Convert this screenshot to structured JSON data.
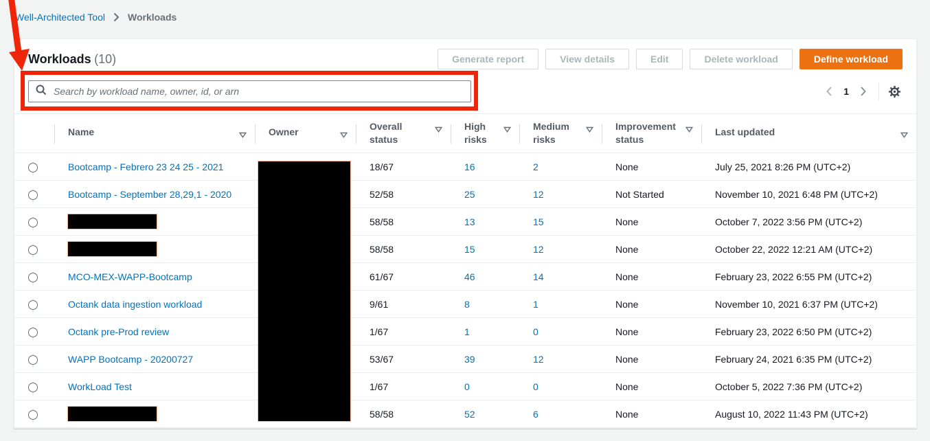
{
  "breadcrumb": {
    "items": [
      {
        "label": "Well-Architected Tool"
      },
      {
        "label": "Workloads"
      }
    ]
  },
  "header": {
    "title": "Workloads",
    "count": "(10)"
  },
  "toolbar": {
    "buttons": [
      {
        "label": "Generate report",
        "disabled": true
      },
      {
        "label": "View details",
        "disabled": true
      },
      {
        "label": "Edit",
        "disabled": true
      },
      {
        "label": "Delete workload",
        "disabled": true
      },
      {
        "label": "Define workload",
        "disabled": false,
        "primary": true
      }
    ]
  },
  "search": {
    "value": "",
    "placeholder": "Search by workload name, owner, id, or arn"
  },
  "pagination": {
    "page": "1"
  },
  "table": {
    "columns": [
      {
        "label": "Name"
      },
      {
        "label": "Owner"
      },
      {
        "label": "Overall status"
      },
      {
        "label": "High risks"
      },
      {
        "label": "Medium risks"
      },
      {
        "label": "Improvement status"
      },
      {
        "label": "Last updated"
      }
    ],
    "rows": [
      {
        "name": "Bootcamp - Febrero 23 24 25 - 2021",
        "name_redacted": false,
        "owner_redacted": true,
        "overall_status": "18/67",
        "high_risks": "16",
        "medium_risks": "2",
        "improvement_status": "None",
        "last_updated": "July 25, 2021 8:26 PM (UTC+2)"
      },
      {
        "name": "Bootcamp - September 28,29,1 - 2020",
        "name_redacted": false,
        "owner_redacted": true,
        "overall_status": "52/58",
        "high_risks": "25",
        "medium_risks": "12",
        "improvement_status": "Not Started",
        "last_updated": "November 10, 2021 6:48 PM (UTC+2)"
      },
      {
        "name": "",
        "name_redacted": true,
        "owner_redacted": true,
        "overall_status": "58/58",
        "high_risks": "13",
        "medium_risks": "15",
        "improvement_status": "None",
        "last_updated": "October 7, 2022 3:56 PM (UTC+2)"
      },
      {
        "name": "",
        "name_redacted": true,
        "owner_redacted": true,
        "overall_status": "58/58",
        "high_risks": "15",
        "medium_risks": "12",
        "improvement_status": "None",
        "last_updated": "October 22, 2022 12:21 AM (UTC+2)"
      },
      {
        "name": "MCO-MEX-WAPP-Bootcamp",
        "name_redacted": false,
        "owner_redacted": true,
        "overall_status": "61/67",
        "high_risks": "46",
        "medium_risks": "14",
        "improvement_status": "None",
        "last_updated": "February 23, 2022 6:55 PM (UTC+2)"
      },
      {
        "name": "Octank data ingestion workload",
        "name_redacted": false,
        "owner_redacted": true,
        "overall_status": "9/61",
        "high_risks": "8",
        "medium_risks": "1",
        "improvement_status": "None",
        "last_updated": "November 10, 2021 6:37 PM (UTC+2)"
      },
      {
        "name": "Octank pre-Prod review",
        "name_redacted": false,
        "owner_redacted": true,
        "overall_status": "1/67",
        "high_risks": "1",
        "medium_risks": "0",
        "improvement_status": "None",
        "last_updated": "February 23, 2022 6:50 PM (UTC+2)"
      },
      {
        "name": "WAPP Bootcamp - 20200727",
        "name_redacted": false,
        "owner_redacted": true,
        "overall_status": "53/67",
        "high_risks": "39",
        "medium_risks": "12",
        "improvement_status": "None",
        "last_updated": "February 24, 2021 6:35 PM (UTC+2)"
      },
      {
        "name": "WorkLoad Test",
        "name_redacted": false,
        "owner_redacted": true,
        "overall_status": "1/67",
        "high_risks": "0",
        "medium_risks": "0",
        "improvement_status": "None",
        "last_updated": "October 5, 2022 7:36 PM (UTC+2)"
      },
      {
        "name": "",
        "name_redacted": true,
        "owner_redacted": true,
        "overall_status": "58/58",
        "high_risks": "52",
        "medium_risks": "6",
        "improvement_status": "None",
        "last_updated": "August 10, 2022 11:43 PM (UTC+2)"
      }
    ]
  },
  "colors": {
    "link_blue": "#0073bb",
    "primary_orange": "#ec7211",
    "annotation_red": "#ee2509",
    "page_background": "#f2f3f3"
  }
}
